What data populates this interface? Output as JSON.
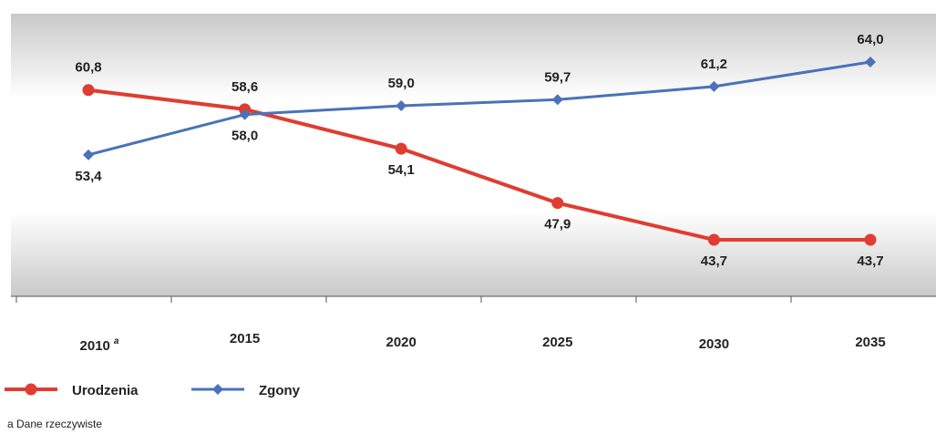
{
  "chart_data": {
    "type": "line",
    "categories": [
      "2010",
      "2015",
      "2020",
      "2025",
      "2030",
      "2035"
    ],
    "category_marker": "a",
    "series": [
      {
        "name": "Urodzenia",
        "color": "#e03c31",
        "values": [
          60.8,
          58.6,
          54.1,
          47.9,
          43.7,
          43.7
        ],
        "value_labels": [
          "60,8",
          "58,6",
          "54,1",
          "47,9",
          "43,7",
          "43,7"
        ]
      },
      {
        "name": "Zgony",
        "color": "#4a72b8",
        "values": [
          53.4,
          58.0,
          59.0,
          59.7,
          61.2,
          64.0
        ],
        "value_labels": [
          "53,4",
          "58,0",
          "59,0",
          "59,7",
          "61,2",
          "64,0"
        ]
      }
    ],
    "legend": "bottom-left",
    "footnote": "a Dane rzeczywiste"
  }
}
